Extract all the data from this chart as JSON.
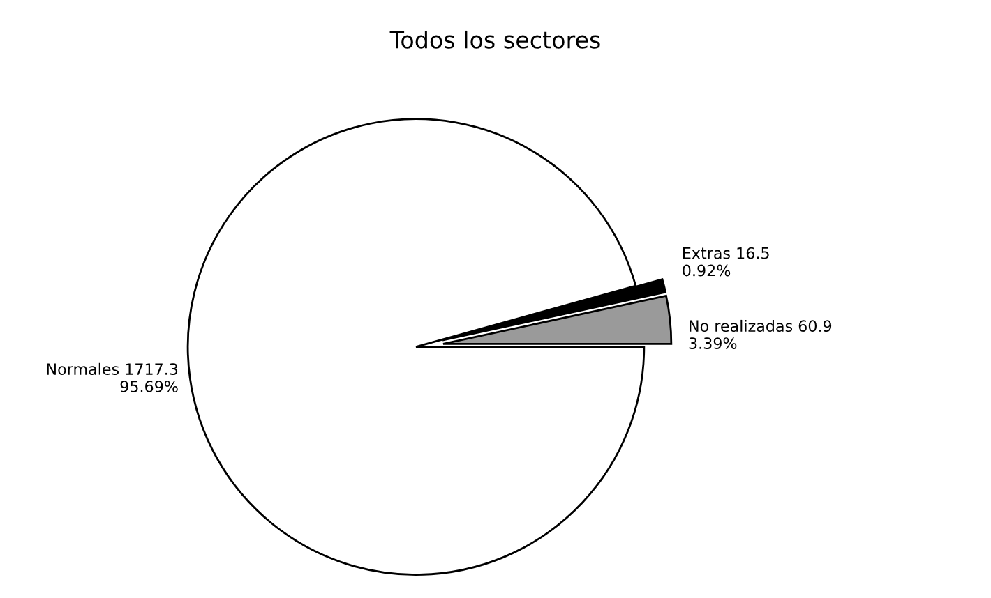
{
  "chart_data": {
    "type": "pie",
    "title": "Todos los sectores",
    "categories": [
      "No realizadas 60.9",
      "Extras 16.5",
      "Normales 1717.3"
    ],
    "values": [
      3.39,
      0.92,
      95.69
    ],
    "value_labels": [
      "3.39%",
      "0.92%",
      "95.69%"
    ],
    "colors": [
      "#9a9a9a",
      "#000000",
      "#ffffff"
    ]
  }
}
